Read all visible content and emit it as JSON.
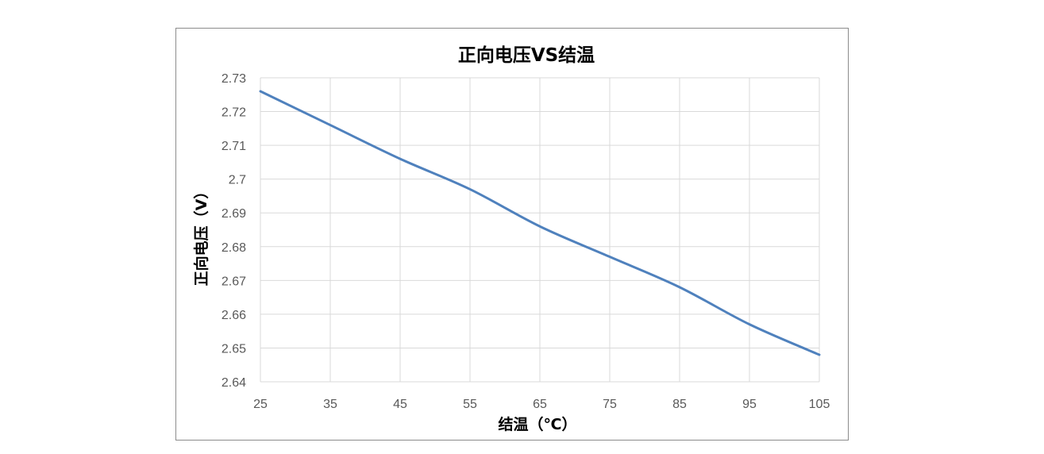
{
  "chart_data": {
    "type": "line",
    "title": "正向电压VS结温",
    "xlabel": "结温（℃）",
    "ylabel": "正向电压（V）",
    "x": [
      25,
      35,
      45,
      55,
      65,
      75,
      85,
      95,
      105
    ],
    "x_ticks": [
      "25",
      "35",
      "45",
      "55",
      "65",
      "75",
      "85",
      "95",
      "105"
    ],
    "y_ticks": [
      "2.64",
      "2.65",
      "2.66",
      "2.67",
      "2.68",
      "2.69",
      "2.7",
      "2.71",
      "2.72",
      "2.73"
    ],
    "xlim": [
      25,
      105
    ],
    "ylim": [
      2.64,
      2.73
    ],
    "grid": true,
    "legend": "none",
    "series": [
      {
        "values": [
          2.726,
          2.716,
          2.706,
          2.697,
          2.686,
          2.677,
          2.668,
          2.657,
          2.648
        ],
        "color": "#4f81bd"
      }
    ]
  }
}
